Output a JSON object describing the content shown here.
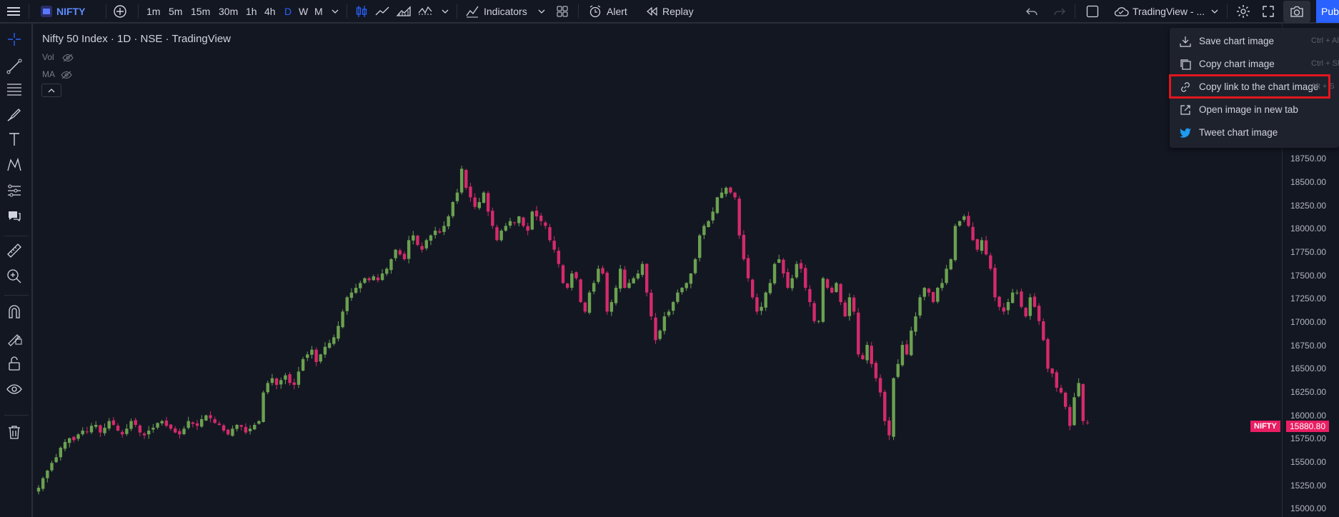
{
  "toolbar": {
    "symbol": "NIFTY",
    "intervals": [
      "1m",
      "5m",
      "15m",
      "30m",
      "1h",
      "4h",
      "D",
      "W",
      "M"
    ],
    "active_interval": "D",
    "indicators_label": "Indicators",
    "alert_label": "Alert",
    "replay_label": "Replay",
    "layout_name": "TradingView - ...",
    "publish_label": "Pub",
    "accent": "#2962ff"
  },
  "legend": {
    "title": "Nifty 50 Index · 1D · NSE · TradingView",
    "vol_label": "Vol",
    "ma_label": "MA"
  },
  "menu": {
    "items": [
      {
        "label": "Save chart image",
        "shortcut": "Ctrl + Alt + S",
        "icon": "download-icon"
      },
      {
        "label": "Copy chart image",
        "shortcut": "Ctrl + Shift + S",
        "icon": "copy-icon"
      },
      {
        "label": "Copy link to the chart image",
        "shortcut": "Alt + S",
        "icon": "link-icon"
      },
      {
        "label": "Open image in new tab",
        "shortcut": "",
        "icon": "external-link-icon"
      },
      {
        "label": "Tweet chart image",
        "shortcut": "",
        "icon": "twitter-icon"
      }
    ],
    "highlighted_index": 2
  },
  "price_axis": {
    "labels": [
      "18750.00",
      "18500.00",
      "18250.00",
      "18000.00",
      "17750.00",
      "17500.00",
      "17250.00",
      "17000.00",
      "16750.00",
      "16500.00",
      "16250.00",
      "16000.00",
      "15750.00",
      "15500.00",
      "15250.00",
      "15000.00"
    ],
    "last_symbol": "NIFTY",
    "last_price": "15880.80"
  },
  "chart_data": {
    "type": "candlestick",
    "up_color": "#6ba150",
    "down_color": "#d42a6b",
    "ylim": [
      14900,
      18800
    ],
    "closes": [
      15200,
      15300,
      15380,
      15460,
      15520,
      15620,
      15680,
      15720,
      15700,
      15760,
      15800,
      15790,
      15850,
      15860,
      15780,
      15830,
      15900,
      15860,
      15800,
      15760,
      15820,
      15900,
      15860,
      15780,
      15750,
      15800,
      15830,
      15880,
      15900,
      15850,
      15820,
      15780,
      15760,
      15820,
      15900,
      15870,
      15850,
      15920,
      15960,
      15930,
      15880,
      15860,
      15800,
      15760,
      15820,
      15860,
      15840,
      15780,
      15820,
      15860,
      15900,
      16200,
      16300,
      16350,
      16280,
      16330,
      16380,
      16300,
      16280,
      16420,
      16550,
      16600,
      16650,
      16520,
      16600,
      16680,
      16720,
      16780,
      16900,
      17050,
      17200,
      17250,
      17300,
      17350,
      17400,
      17380,
      17420,
      17380,
      17450,
      17500,
      17600,
      17700,
      17650,
      17600,
      17800,
      17850,
      17750,
      17700,
      17800,
      17850,
      17900,
      17880,
      17950,
      18050,
      18200,
      18300,
      18550,
      18350,
      18250,
      18150,
      18200,
      18300,
      18100,
      17950,
      17800,
      17900,
      17950,
      18000,
      17980,
      18050,
      17950,
      17900,
      18100,
      18050,
      18000,
      17950,
      17800,
      17700,
      17550,
      17350,
      17300,
      17450,
      17400,
      17150,
      17050,
      17250,
      17350,
      17500,
      17450,
      17050,
      17150,
      17300,
      17500,
      17300,
      17350,
      17400,
      17450,
      17550,
      17250,
      17000,
      16750,
      16850,
      17000,
      17050,
      17150,
      17250,
      17300,
      17350,
      17450,
      17600,
      17850,
      17950,
      18000,
      18100,
      18250,
      18300,
      18350,
      18300,
      18250,
      17850,
      17600,
      17400,
      17200,
      17050,
      17100,
      17250,
      17350,
      17550,
      17600,
      17450,
      17300,
      17400,
      17550,
      17500,
      17300,
      17150,
      16950,
      16950,
      17400,
      17300,
      17250,
      17350,
      17150,
      17000,
      17200,
      17050,
      16600,
      16550,
      16700,
      16500,
      16350,
      16200,
      15900,
      15750,
      16350,
      16500,
      16700,
      16600,
      16850,
      17000,
      17200,
      17300,
      17250,
      17150,
      17300,
      17350,
      17500,
      17600,
      17950,
      18000,
      18050,
      17950,
      17800,
      17700,
      17800,
      17650,
      17500,
      17200,
      17100,
      17050,
      17150,
      17250,
      17250,
      17100,
      17000,
      17200,
      17100,
      16950,
      16750,
      16450,
      16400,
      16250,
      16200,
      16050,
      15850,
      16150,
      16300,
      15900,
      15880
    ]
  }
}
